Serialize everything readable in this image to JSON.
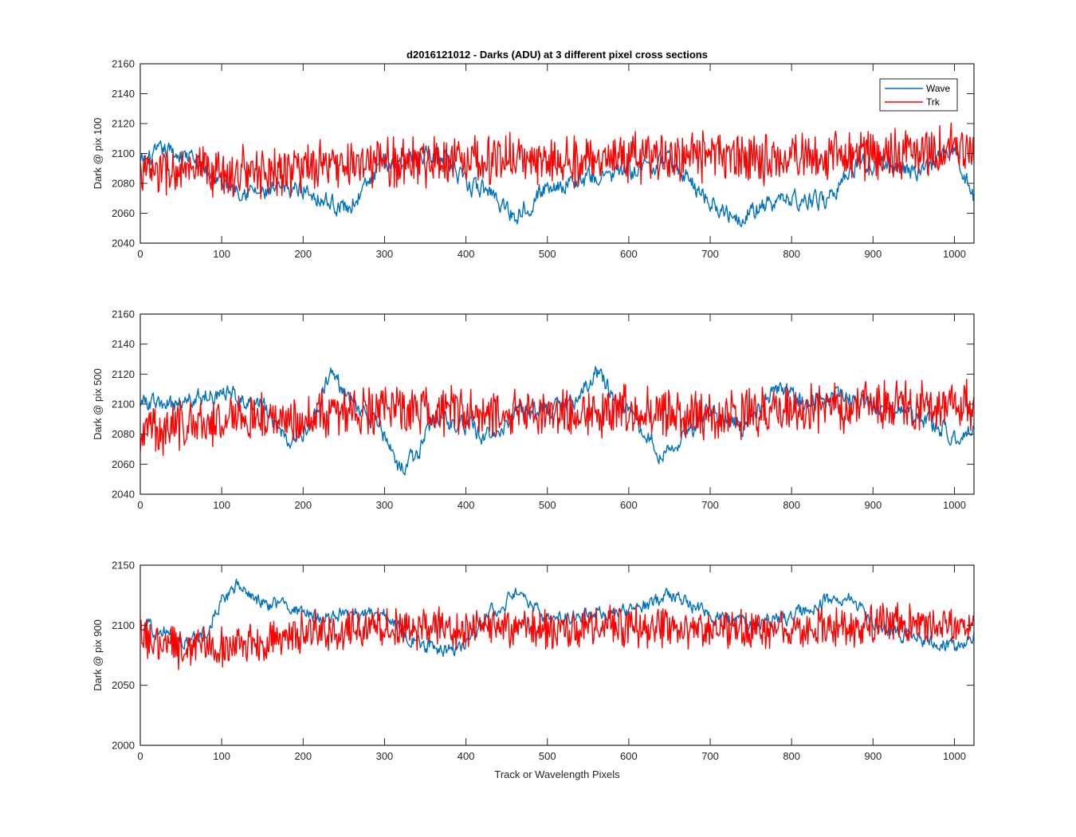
{
  "figure": {
    "title": "d2016121012 - Darks (ADU) at 3 different pixel cross sections",
    "xlabel": "Track or Wavelength Pixels"
  },
  "legend": {
    "location": "top-right of first panel",
    "entries": [
      {
        "name": "Wave",
        "color": "#0072BD"
      },
      {
        "name": "Trk",
        "color": "#FF0000"
      }
    ]
  },
  "chart_data": [
    {
      "type": "line",
      "title": "d2016121012 - Darks (ADU) at 3 different pixel cross sections",
      "xlabel": "",
      "ylabel": "Dark @ pix 100",
      "xlim": [
        0,
        1024
      ],
      "ylim": [
        2040,
        2160
      ],
      "xticks": [
        0,
        100,
        200,
        300,
        400,
        500,
        600,
        700,
        800,
        900,
        1000
      ],
      "yticks": [
        2040,
        2060,
        2080,
        2100,
        2120,
        2140,
        2160
      ],
      "legend": "top-right",
      "series": [
        {
          "name": "Wave",
          "color": "#0072BD",
          "noise": 5,
          "x": [
            0,
            30,
            60,
            100,
            150,
            200,
            230,
            255,
            300,
            330,
            370,
            400,
            430,
            460,
            500,
            550,
            600,
            650,
            700,
            730,
            760,
            800,
            840,
            880,
            920,
            960,
            1000,
            1024
          ],
          "y": [
            2093,
            2102,
            2098,
            2080,
            2073,
            2077,
            2068,
            2063,
            2093,
            2096,
            2101,
            2078,
            2075,
            2058,
            2078,
            2083,
            2088,
            2095,
            2068,
            2058,
            2063,
            2070,
            2068,
            2093,
            2092,
            2087,
            2103,
            2070
          ]
        },
        {
          "name": "Trk",
          "color": "#FF0000",
          "noise": 13,
          "x": [
            0,
            100,
            200,
            300,
            400,
            500,
            600,
            700,
            800,
            900,
            1024
          ],
          "y": [
            2088,
            2087,
            2090,
            2094,
            2097,
            2095,
            2097,
            2098,
            2097,
            2100,
            2102
          ]
        }
      ]
    },
    {
      "type": "line",
      "xlabel": "",
      "ylabel": "Dark @ pix 500",
      "xlim": [
        0,
        1024
      ],
      "ylim": [
        2040,
        2160
      ],
      "xticks": [
        0,
        100,
        200,
        300,
        400,
        500,
        600,
        700,
        800,
        900,
        1000
      ],
      "yticks": [
        2040,
        2060,
        2080,
        2100,
        2120,
        2140,
        2160
      ],
      "series": [
        {
          "name": "Wave",
          "color": "#0072BD",
          "noise": 5,
          "x": [
            0,
            30,
            60,
            100,
            150,
            180,
            200,
            235,
            260,
            290,
            320,
            340,
            360,
            400,
            430,
            460,
            500,
            530,
            560,
            590,
            640,
            670,
            700,
            740,
            780,
            820,
            860,
            880,
            920,
            960,
            1000,
            1024
          ],
          "y": [
            2103,
            2098,
            2103,
            2108,
            2100,
            2075,
            2078,
            2120,
            2103,
            2088,
            2055,
            2065,
            2092,
            2086,
            2078,
            2095,
            2098,
            2100,
            2122,
            2100,
            2068,
            2080,
            2095,
            2085,
            2110,
            2100,
            2108,
            2102,
            2098,
            2090,
            2080,
            2085
          ]
        },
        {
          "name": "Trk",
          "color": "#FF0000",
          "noise": 13,
          "x": [
            0,
            100,
            200,
            300,
            400,
            500,
            600,
            700,
            800,
            900,
            1024
          ],
          "y": [
            2082,
            2090,
            2092,
            2096,
            2095,
            2095,
            2096,
            2093,
            2094,
            2100,
            2100
          ]
        }
      ]
    },
    {
      "type": "line",
      "xlabel": "Track or Wavelength Pixels",
      "ylabel": "Dark @ pix 900",
      "xlim": [
        0,
        1024
      ],
      "ylim": [
        2000,
        2150
      ],
      "xticks": [
        0,
        100,
        200,
        300,
        400,
        500,
        600,
        700,
        800,
        900,
        1000
      ],
      "yticks": [
        2000,
        2050,
        2100,
        2150
      ],
      "series": [
        {
          "name": "Wave",
          "color": "#0072BD",
          "noise": 5,
          "x": [
            0,
            30,
            60,
            80,
            100,
            120,
            150,
            180,
            200,
            250,
            300,
            330,
            360,
            390,
            430,
            460,
            500,
            550,
            600,
            650,
            700,
            750,
            800,
            850,
            870,
            900,
            950,
            1000,
            1024
          ],
          "y": [
            2100,
            2095,
            2085,
            2095,
            2120,
            2133,
            2118,
            2115,
            2108,
            2110,
            2108,
            2090,
            2082,
            2078,
            2110,
            2125,
            2105,
            2110,
            2110,
            2125,
            2108,
            2100,
            2108,
            2122,
            2125,
            2100,
            2090,
            2082,
            2095
          ]
        },
        {
          "name": "Trk",
          "color": "#FF0000",
          "noise": 13,
          "x": [
            0,
            50,
            100,
            150,
            200,
            300,
            400,
            500,
            600,
            700,
            800,
            900,
            1024
          ],
          "y": [
            2092,
            2080,
            2083,
            2085,
            2095,
            2098,
            2098,
            2097,
            2098,
            2097,
            2097,
            2100,
            2100
          ]
        }
      ]
    }
  ]
}
